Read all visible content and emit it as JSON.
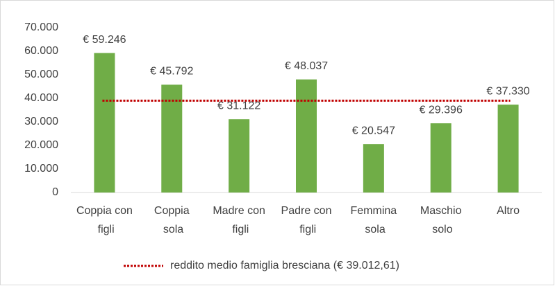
{
  "chart_data": {
    "type": "bar",
    "categories": [
      "Coppia con figli",
      "Coppia sola",
      "Madre con figli",
      "Padre con figli",
      "Femmina sola",
      "Maschio solo",
      "Altro"
    ],
    "values": [
      59246,
      45792,
      31122,
      48037,
      20547,
      29396,
      37330
    ],
    "value_labels": [
      "€ 59.246",
      "€ 45.792",
      "€ 31.122",
      "€ 48.037",
      "€ 20.547",
      "€ 29.396",
      "€ 37.330"
    ],
    "color": "#70ad47",
    "reference_line": {
      "name": "reddito medio famiglia bresciana (€ 39.012,61)",
      "value": 39012.61,
      "color": "#c00000"
    },
    "ylim": [
      0,
      70000
    ],
    "yticks": [
      0,
      {
        "value": 10000,
        "label": "10.000"
      },
      {
        "value": 20000,
        "label": "20.000"
      },
      {
        "value": 30000,
        "label": "30.000"
      },
      {
        "value": 40000,
        "label": "40.000"
      },
      {
        "value": 50000,
        "label": "50.000"
      },
      {
        "value": 60000,
        "label": "60.000"
      },
      {
        "value": 70000,
        "label": "70.000"
      }
    ],
    "grid": false,
    "legend": "bottom"
  }
}
